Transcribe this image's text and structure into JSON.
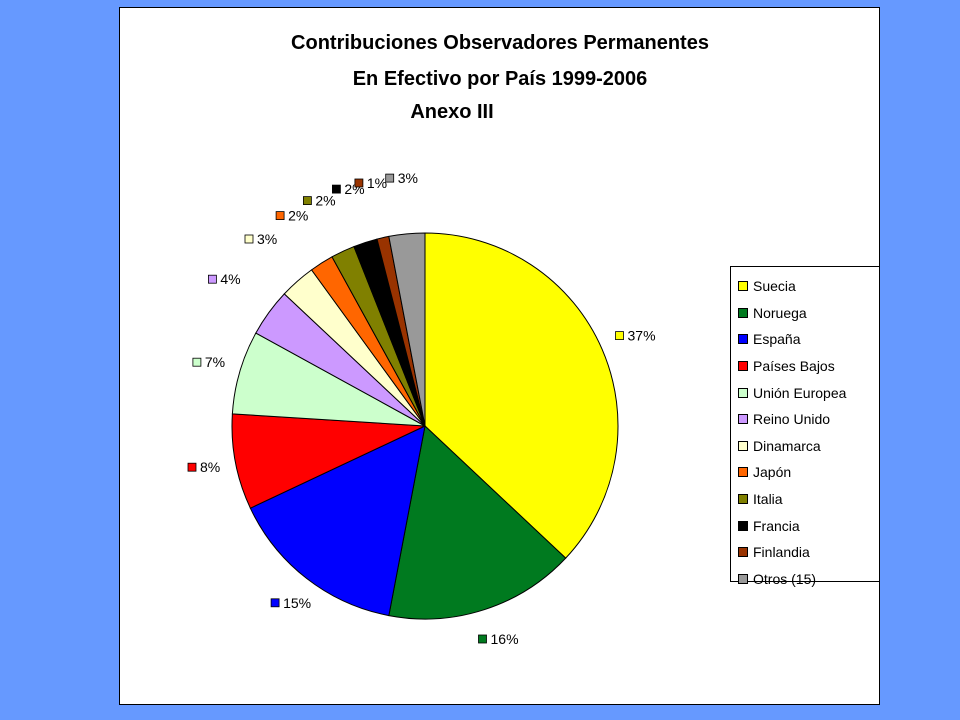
{
  "chart_data": {
    "type": "pie",
    "title": [
      "Contribuciones Observadores Permanentes",
      "En Efectivo por País 1999-2006",
      "Anexo III"
    ],
    "legend_position": "right",
    "slices": [
      {
        "name": "Suecia",
        "value": 37,
        "label": "37%",
        "color": "#FFFF00"
      },
      {
        "name": "Noruega",
        "value": 16,
        "label": "16%",
        "color": "#007A1F"
      },
      {
        "name": "España",
        "value": 15,
        "label": "15%",
        "color": "#0000FF"
      },
      {
        "name": "Países Bajos",
        "value": 8,
        "label": "8%",
        "color": "#FF0000"
      },
      {
        "name": "Unión Europea",
        "value": 7,
        "label": "7%",
        "color": "#CCFFCC"
      },
      {
        "name": "Reino Unido",
        "value": 4,
        "label": "4%",
        "color": "#CC99FF"
      },
      {
        "name": "Dinamarca",
        "value": 3,
        "label": "3%",
        "color": "#FFFFCC"
      },
      {
        "name": "Japón",
        "value": 2,
        "label": "2%",
        "color": "#FF6600"
      },
      {
        "name": "Italia",
        "value": 2,
        "label": "2%",
        "color": "#808000"
      },
      {
        "name": "Francia",
        "value": 2,
        "label": "2%",
        "color": "#000000"
      },
      {
        "name": "Finlandia",
        "value": 1,
        "label": "1%",
        "color": "#993300"
      },
      {
        "name": "Otros (15)",
        "value": 3,
        "label": "3%",
        "color": "#999999"
      }
    ]
  }
}
